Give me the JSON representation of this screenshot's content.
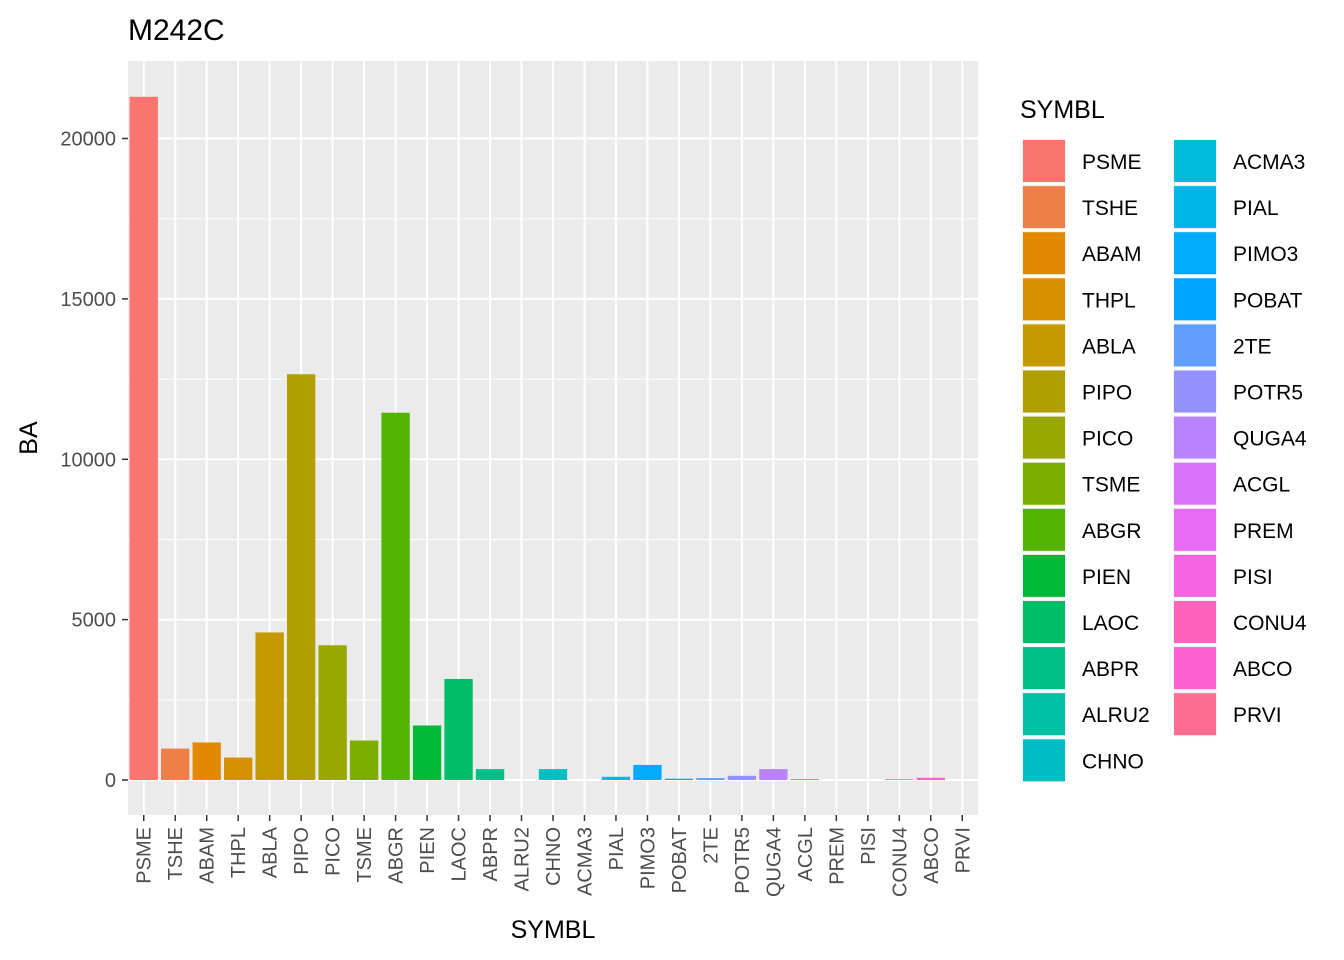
{
  "chart_data": {
    "type": "bar",
    "title": "M242C",
    "xlabel": "SYMBL",
    "ylabel": "BA",
    "legend_title": "SYMBL",
    "legend_position": "right",
    "grid": true,
    "ylim": [
      0,
      22000
    ],
    "yticks": [
      0,
      5000,
      10000,
      15000,
      20000
    ],
    "ytick_labels": [
      "0",
      "5000",
      "10000",
      "15000",
      "20000"
    ],
    "categories": [
      "PSME",
      "TSHE",
      "ABAM",
      "THPL",
      "ABLA",
      "PIPO",
      "PICO",
      "TSME",
      "ABGR",
      "PIEN",
      "LAOC",
      "ABPR",
      "ALRU2",
      "CHNO",
      "ACMA3",
      "PIAL",
      "PIMO3",
      "POBAT",
      "2TE",
      "POTR5",
      "QUGA4",
      "ACGL",
      "PREM",
      "PISI",
      "CONU4",
      "ABCO",
      "PRVI"
    ],
    "values": [
      21300,
      980,
      1170,
      700,
      4600,
      12650,
      4200,
      1230,
      11450,
      1700,
      3150,
      340,
      0,
      340,
      0,
      100,
      470,
      40,
      60,
      130,
      340,
      30,
      0,
      0,
      25,
      70,
      0
    ],
    "colors": [
      "#F8766D",
      "#EF7F49",
      "#E38900",
      "#D59100",
      "#C49A00",
      "#B09F00",
      "#99A800",
      "#7CAE00",
      "#53B400",
      "#00BA38",
      "#00BE67",
      "#00C087",
      "#00C0A3",
      "#00BFC4",
      "#00BCD8",
      "#00B6EB",
      "#00ABFD",
      "#00A5FF",
      "#619CFF",
      "#9590FF",
      "#B983FF",
      "#DB72FB",
      "#E76BF3",
      "#F564E3",
      "#FF62BC",
      "#FD61D1",
      "#FF6C91"
    ]
  }
}
